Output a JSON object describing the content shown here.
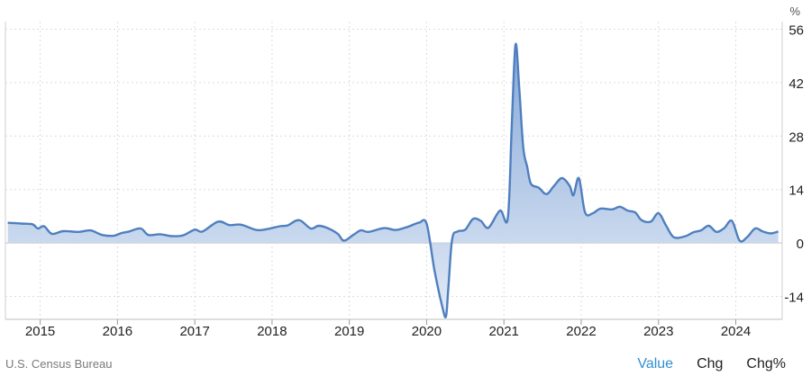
{
  "chart_data": {
    "type": "area",
    "unit_label": "%",
    "y_ticks": [
      56,
      42,
      28,
      14,
      0,
      -14
    ],
    "ylim": [
      -20,
      58
    ],
    "x_ticks": [
      "2015",
      "2016",
      "2017",
      "2018",
      "2019",
      "2020",
      "2021",
      "2022",
      "2023",
      "2024"
    ],
    "xlim": [
      2014.55,
      2024.6
    ],
    "grid": true,
    "colors": {
      "line": "#4f7fbf",
      "fill_top": "#7ea3d6",
      "fill_bottom": "#dfe8f5",
      "grid": "#dcdcdc"
    },
    "series": [
      {
        "x": [
          2014.58,
          2014.75,
          2014.9,
          2014.97,
          2015.05,
          2015.15,
          2015.3,
          2015.5,
          2015.65,
          2015.8,
          2015.95,
          2016.05,
          2016.15,
          2016.3,
          2016.4,
          2016.55,
          2016.7,
          2016.85,
          2017.0,
          2017.1,
          2017.3,
          2017.45,
          2017.6,
          2017.8,
          2017.95,
          2018.1,
          2018.2,
          2018.35,
          2018.5,
          2018.6,
          2018.72,
          2018.85,
          2018.93,
          2019.05,
          2019.15,
          2019.25,
          2019.45,
          2019.6,
          2019.75,
          2019.9,
          2020.0,
          2020.1,
          2020.2,
          2020.25,
          2020.28,
          2020.33,
          2020.4,
          2020.5,
          2020.6,
          2020.7,
          2020.8,
          2020.95,
          2021.05,
          2021.1,
          2021.15,
          2021.2,
          2021.25,
          2021.3,
          2021.35,
          2021.45,
          2021.55,
          2021.65,
          2021.75,
          2021.85,
          2021.9,
          2021.97,
          2022.05,
          2022.15,
          2022.25,
          2022.4,
          2022.5,
          2022.6,
          2022.7,
          2022.78,
          2022.9,
          2023.0,
          2023.1,
          2023.2,
          2023.35,
          2023.45,
          2023.55,
          2023.65,
          2023.75,
          2023.85,
          2023.95,
          2024.05,
          2024.15,
          2024.25,
          2024.35,
          2024.45,
          2024.55
        ],
        "values": [
          5.3,
          5.1,
          4.9,
          3.8,
          4.4,
          2.4,
          3.1,
          2.9,
          3.3,
          2.1,
          1.9,
          2.6,
          3.0,
          3.8,
          2.1,
          2.3,
          1.8,
          2.0,
          3.5,
          3.0,
          5.6,
          4.7,
          4.8,
          3.4,
          3.7,
          4.4,
          4.6,
          6.0,
          3.8,
          4.5,
          3.9,
          2.4,
          0.6,
          2.1,
          3.3,
          2.9,
          3.9,
          3.4,
          4.2,
          5.3,
          5.0,
          -7.0,
          -16.5,
          -19.3,
          -12.0,
          1.0,
          3.0,
          3.5,
          6.3,
          5.8,
          4.0,
          8.5,
          6.5,
          30.0,
          52.0,
          40.0,
          25.0,
          20.0,
          15.5,
          14.5,
          12.8,
          15.0,
          17.0,
          15.0,
          12.5,
          17.0,
          8.0,
          7.8,
          9.0,
          8.8,
          9.5,
          8.5,
          8.0,
          6.0,
          5.6,
          7.8,
          4.5,
          1.5,
          1.8,
          2.8,
          3.3,
          4.5,
          2.9,
          3.9,
          5.8,
          0.6,
          1.6,
          3.8,
          3.0,
          2.5,
          3.0
        ]
      }
    ]
  },
  "footer": {
    "source": "U.S. Census Bureau",
    "tabs": [
      "Value",
      "Chg",
      "Chg%"
    ]
  }
}
